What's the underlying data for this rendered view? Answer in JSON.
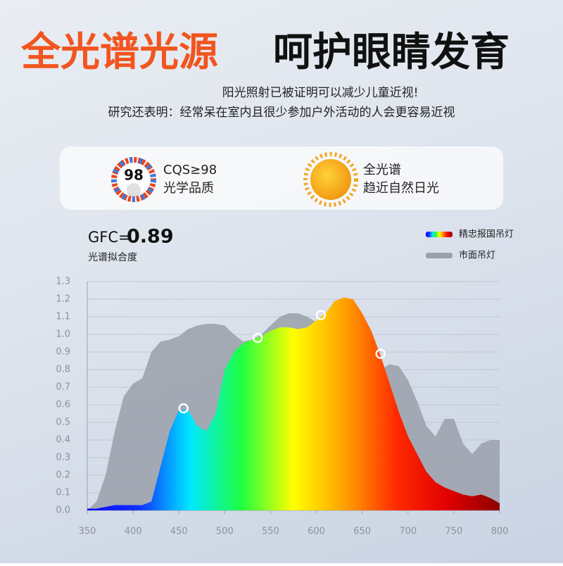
{
  "header": {
    "title_accent": "全光谱光源",
    "title": "呵护眼睛发育",
    "subtitle": [
      "阳光照射已被证明可以减少儿童近视!",
      "研究还表明：经常呆在室内且很少参加户外活动的人会更容易近视"
    ]
  },
  "features": [
    {
      "badge": "98",
      "title": "CQS≥98",
      "text": "光学品质"
    },
    {
      "title": "全光谱",
      "text": "趋近自然日光"
    }
  ],
  "gfc": {
    "label": "GFC=",
    "value": 0.89,
    "caption": "光谱拟合度"
  },
  "chart_data": {
    "type": "area",
    "x": [
      350,
      360,
      370,
      380,
      390,
      400,
      410,
      420,
      430,
      440,
      450,
      460,
      470,
      480,
      490,
      500,
      510,
      520,
      530,
      540,
      550,
      560,
      570,
      580,
      590,
      600,
      610,
      620,
      630,
      640,
      650,
      660,
      670,
      680,
      690,
      700,
      710,
      720,
      730,
      740,
      750,
      760,
      770,
      780,
      790,
      800
    ],
    "series": [
      {
        "name": "市面吊灯",
        "color": "#9aa0aa",
        "values": [
          0.0,
          0.05,
          0.2,
          0.45,
          0.65,
          0.72,
          0.75,
          0.9,
          0.96,
          0.97,
          0.99,
          1.03,
          1.05,
          1.06,
          1.06,
          1.05,
          1.0,
          0.96,
          0.97,
          1.0,
          1.05,
          1.1,
          1.12,
          1.12,
          1.1,
          1.07,
          1.06,
          1.03,
          0.98,
          0.92,
          0.87,
          0.82,
          0.8,
          0.83,
          0.82,
          0.74,
          0.62,
          0.48,
          0.42,
          0.52,
          0.52,
          0.38,
          0.32,
          0.38,
          0.4,
          0.4
        ]
      },
      {
        "name": "精忠报国吊灯",
        "gradient": [
          "#0a0aff",
          "#1030ff",
          "#00e8ff",
          "#20ff40",
          "#ffff00",
          "#ffa000",
          "#ff2a00",
          "#e00000",
          "#8b0000"
        ],
        "values": [
          0.01,
          0.01,
          0.02,
          0.03,
          0.03,
          0.03,
          0.03,
          0.05,
          0.25,
          0.45,
          0.57,
          0.57,
          0.48,
          0.45,
          0.55,
          0.8,
          0.9,
          0.95,
          0.97,
          0.99,
          1.02,
          1.04,
          1.04,
          1.03,
          1.04,
          1.08,
          1.12,
          1.19,
          1.21,
          1.2,
          1.12,
          1.02,
          0.88,
          0.72,
          0.56,
          0.42,
          0.32,
          0.22,
          0.16,
          0.13,
          0.11,
          0.09,
          0.08,
          0.09,
          0.07,
          0.04
        ]
      }
    ],
    "highlights": {
      "x": [
        455,
        536,
        605,
        670
      ],
      "values": [
        0.58,
        0.98,
        1.11,
        0.89
      ]
    },
    "xlim": [
      350,
      800
    ],
    "xticks": [
      350,
      400,
      450,
      500,
      550,
      600,
      650,
      700,
      750,
      800
    ],
    "ylim": [
      0,
      1.3
    ],
    "yticks": [
      {
        "value": 0,
        "label": "0.0"
      },
      0.1,
      0.2,
      0.3,
      0.4,
      0.5,
      0.6,
      0.7,
      0.8,
      0.9,
      {
        "value": 1,
        "label": "1.0"
      },
      1.1,
      1.2,
      1.3
    ],
    "grid": true
  }
}
